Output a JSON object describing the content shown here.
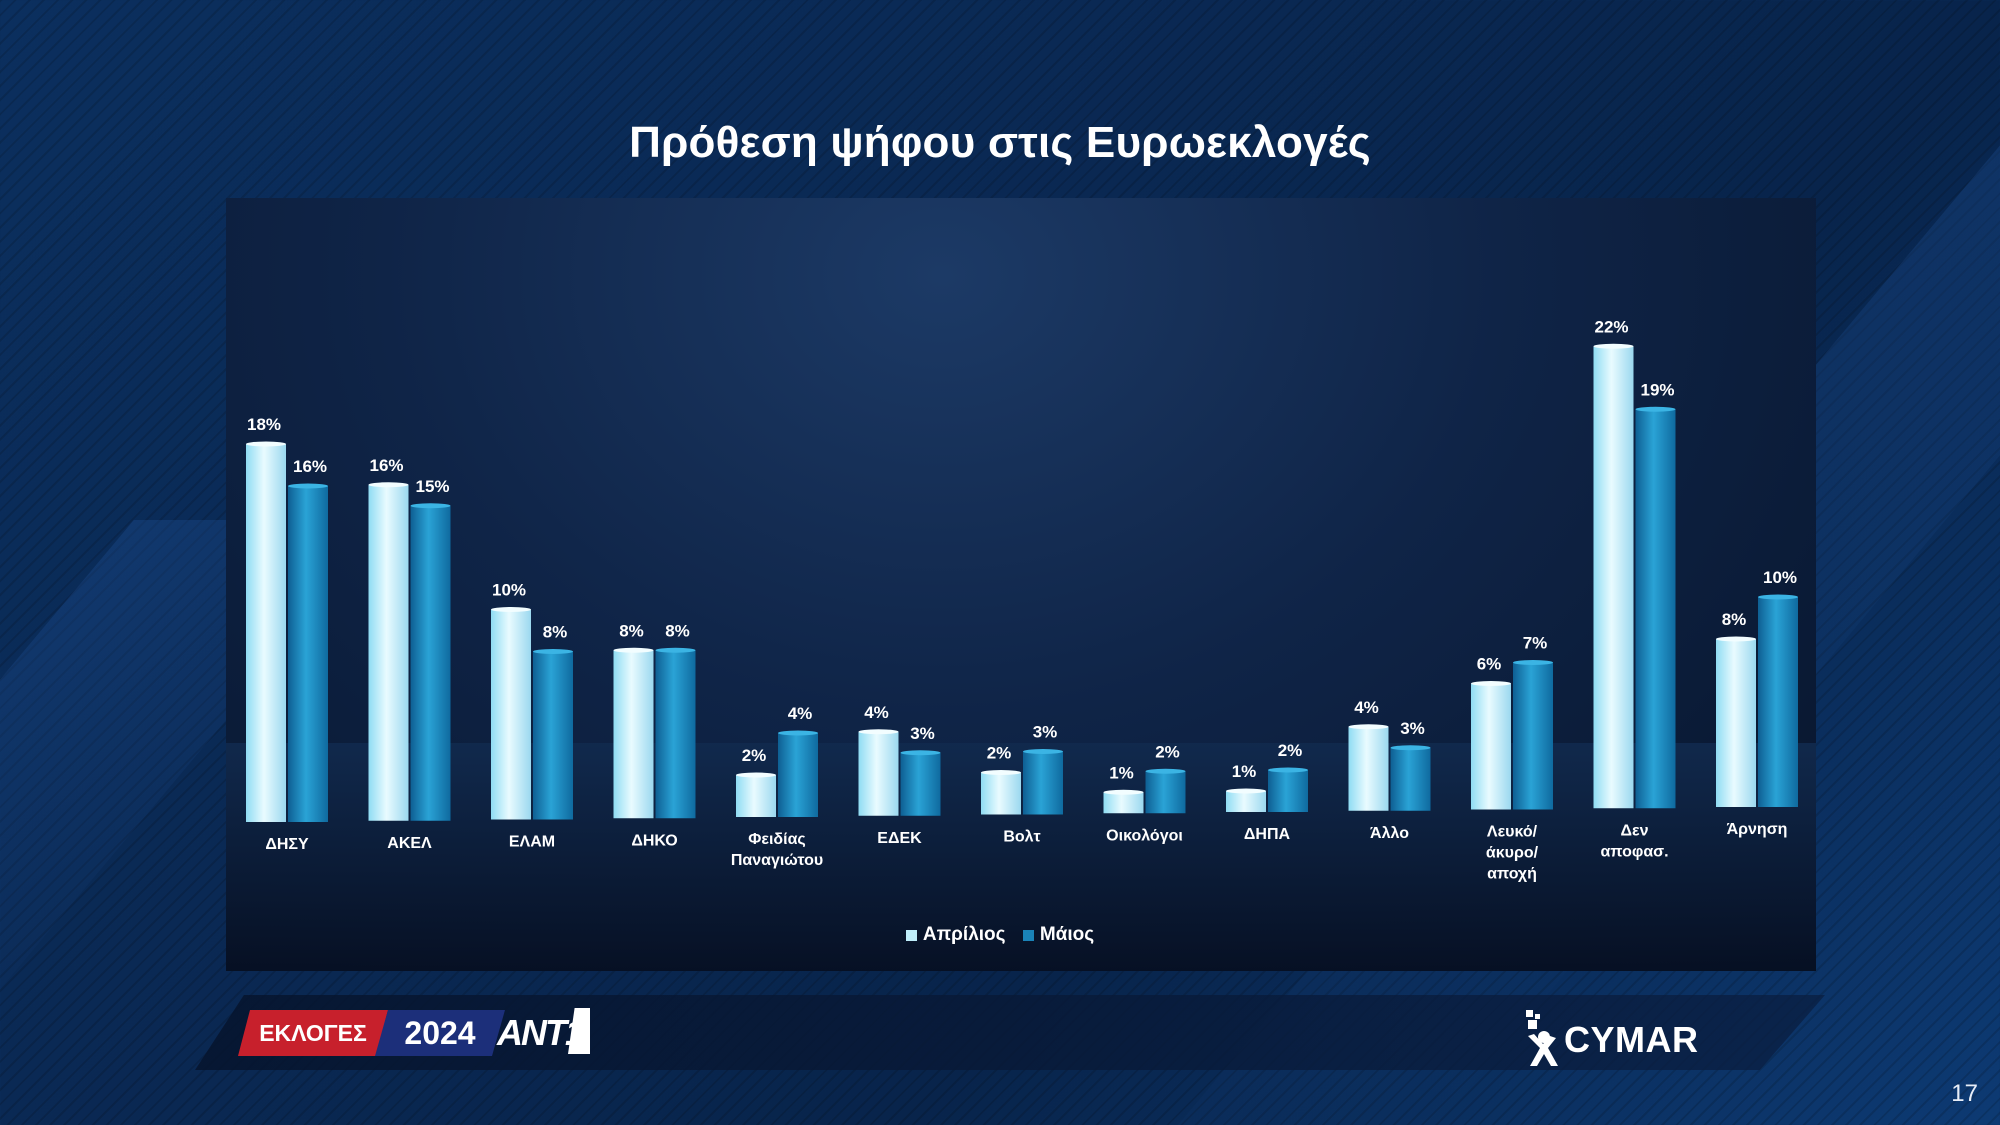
{
  "slide": {
    "title": "Πρόθεση ψήφου στις Ευρωεκλογές",
    "page_number": "17"
  },
  "branding": {
    "elections_label": "ΕΚΛΟΓΕΣ",
    "year_label": "2024",
    "channel_label": "ANT1",
    "pollster_label": "CYMAR"
  },
  "colors": {
    "april": "#bfeefb",
    "may": "#1a83b8",
    "text": "#ffffff"
  },
  "chart_data": {
    "type": "bar",
    "title": "Πρόθεση ψήφου στις Ευρωεκλογές",
    "categories": [
      [
        "ΔΗΣΥ"
      ],
      [
        "ΑΚΕΛ"
      ],
      [
        "ΕΛΑΜ"
      ],
      [
        "ΔΗΚΟ"
      ],
      [
        "Φειδίας",
        "Παναγιώτου"
      ],
      [
        "ΕΔΕΚ"
      ],
      [
        "Βολτ"
      ],
      [
        "Οικολόγοι"
      ],
      [
        "ΔΗΠΑ"
      ],
      [
        "Άλλο"
      ],
      [
        "Λευκό/",
        "άκυρο/",
        "αποχή"
      ],
      [
        "Δεν",
        "αποφασ."
      ],
      [
        "Άρνηση"
      ]
    ],
    "series": [
      {
        "name": "Απρίλιος",
        "values": [
          18,
          16,
          10,
          8,
          2,
          4,
          2,
          1,
          1,
          4,
          6,
          22,
          8
        ]
      },
      {
        "name": "Μάιος",
        "values": [
          16,
          15,
          8,
          8,
          4,
          3,
          3,
          2,
          2,
          3,
          7,
          19,
          10
        ]
      }
    ],
    "value_suffix": "%",
    "ylim": [
      0,
      22
    ],
    "grid": false,
    "legend_position": "bottom-center"
  }
}
